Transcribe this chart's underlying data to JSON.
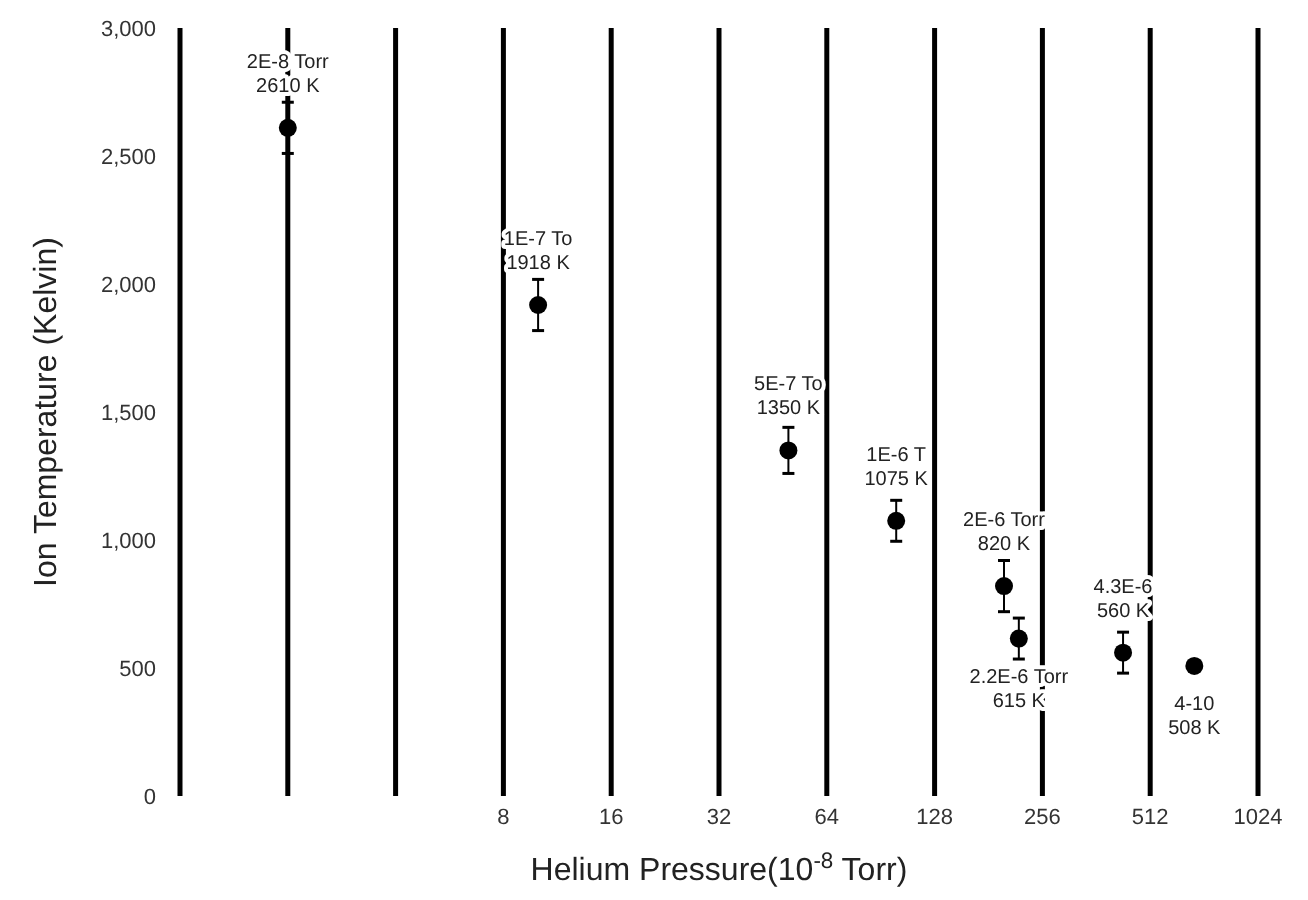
{
  "chart_data": {
    "type": "scatter",
    "xlabel": "Helium Pressure(10$^{-8}$ Torr)",
    "ylabel": "Ion Temperature (Kelvin)",
    "x": [
      2,
      10,
      50,
      100,
      200,
      220,
      430,
      680
    ],
    "values": [
      2610,
      1918,
      1350,
      1075,
      820,
      615,
      560,
      508
    ],
    "errors": [
      100,
      100,
      90,
      80,
      100,
      80,
      80,
      null
    ],
    "color": "#000000",
    "marker": "circle",
    "log": "x",
    "grid": "x",
    "xlim": [
      1,
      1024
    ],
    "xticks": [
      {
        "value": 2,
        "label": null
      },
      {
        "value": 4,
        "label": null
      },
      8,
      16,
      32,
      64,
      128,
      256,
      512,
      1024
    ],
    "ylim": [
      0,
      3000
    ],
    "yticks": [
      {
        "value": 0,
        "label": "0"
      },
      {
        "value": 500,
        "label": "500"
      },
      {
        "value": 1000,
        "label": "1,000"
      },
      {
        "value": 1500,
        "label": "1,500"
      },
      {
        "value": 2000,
        "label": "2,000"
      },
      {
        "value": 2500,
        "label": "2,500"
      },
      {
        "value": 3000,
        "label": "3,000"
      }
    ],
    "annotations": [
      {
        "text": "2E-8 Torr\n2610 K",
        "x": 2,
        "y": 2610
      },
      {
        "text": "1E-7 To\n1918 K",
        "x": 10,
        "y": 1918
      },
      {
        "text": "5E-7 To\n1350 K",
        "x": 50,
        "y": 1350
      },
      {
        "text": "1E-6 T\n1075 K",
        "x": 100,
        "y": 1075
      },
      {
        "text": "2E-6 Torr\n820 K",
        "x": 200,
        "y": 820
      },
      {
        "text": "2.2E-6 Torr\n615 K",
        "x": 220,
        "y": 615
      },
      {
        "text": "4.3E-6\n560 K",
        "x": 430,
        "y": 560
      },
      {
        "text": "4-10\n508 K",
        "x": 680,
        "y": 508
      }
    ]
  }
}
